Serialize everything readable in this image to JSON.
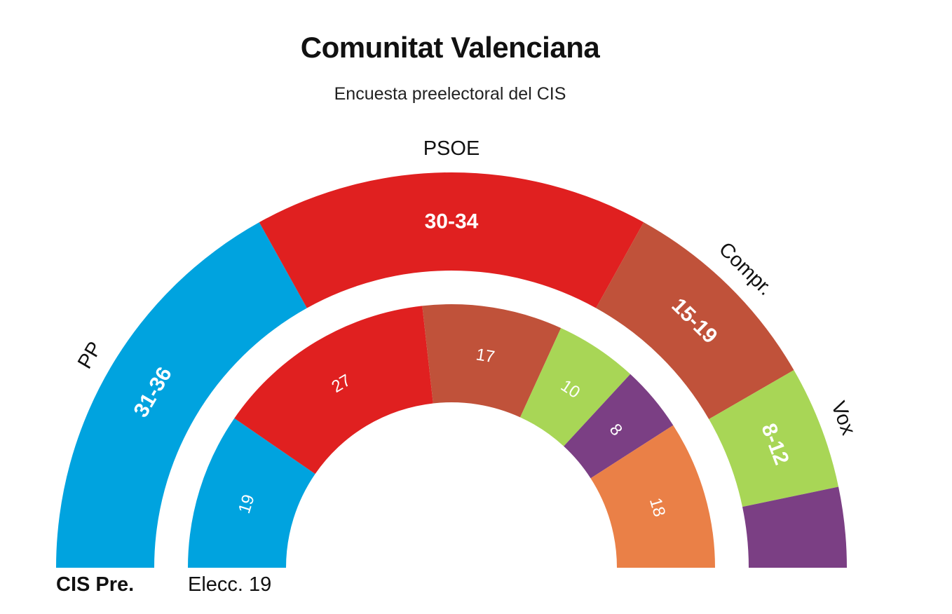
{
  "title": "Comunitat Valenciana",
  "subtitle": "Encuesta preelectoral del CIS",
  "chart_data": {
    "type": "pie",
    "subtype": "semicircle parliament (two concentric rings)",
    "rings": [
      {
        "name": "CIS Pre.",
        "position": "outer",
        "segments": [
          {
            "party": "PP",
            "label": "31-36",
            "value": 33.5,
            "color": "#00a3df"
          },
          {
            "party": "PSOE",
            "label": "30-34",
            "value": 32,
            "color": "#e02020"
          },
          {
            "party": "Compr.",
            "label": "15-19",
            "value": 17,
            "color": "#c0523a"
          },
          {
            "party": "Vox",
            "label": "8-12",
            "value": 10,
            "color": "#a8d656"
          },
          {
            "party": "",
            "label": "",
            "value": 6.5,
            "color": "#7b3f84"
          }
        ]
      },
      {
        "name": "Elecc. 19",
        "position": "inner",
        "segments": [
          {
            "label": "19",
            "value": 19,
            "color": "#00a3df"
          },
          {
            "label": "27",
            "value": 27,
            "color": "#e02020"
          },
          {
            "label": "17",
            "value": 17,
            "color": "#c0523a"
          },
          {
            "label": "10",
            "value": 10,
            "color": "#a8d656"
          },
          {
            "label": "8",
            "value": 8,
            "color": "#7b3f84"
          },
          {
            "label": "18",
            "value": 18,
            "color": "#ea8047"
          }
        ]
      }
    ]
  }
}
